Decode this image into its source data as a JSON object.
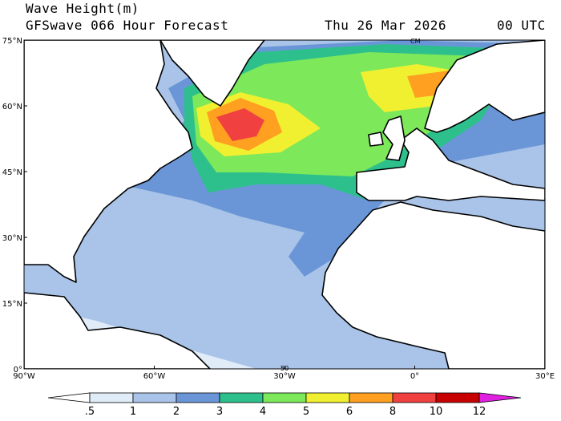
{
  "header": {
    "title": "Wave Height(m)",
    "subtitle": "GFSwave 066 Hour Forecast",
    "date": "Thu 26 Mar 2026",
    "time": "00 UTC"
  },
  "map": {
    "lat_labels": [
      "75°N",
      "60°N",
      "45°N",
      "30°N",
      "15°N",
      "0°"
    ],
    "lon_labels": [
      "90°W",
      "60°W",
      "30°W",
      "0°",
      "30°E"
    ],
    "map_labels": [
      "CM",
      "50"
    ]
  },
  "colorbar": {
    "labels": [
      ".5",
      "1",
      "2",
      "3",
      "4",
      "5",
      "6",
      "8",
      "10",
      "12"
    ],
    "colors": [
      "#ffffff",
      "#e0ecf8",
      "#a9c4e8",
      "#6a96d8",
      "#2ec08c",
      "#7ce85a",
      "#f0f030",
      "#ffa020",
      "#f04040",
      "#c80000",
      "#e020e0"
    ]
  }
}
